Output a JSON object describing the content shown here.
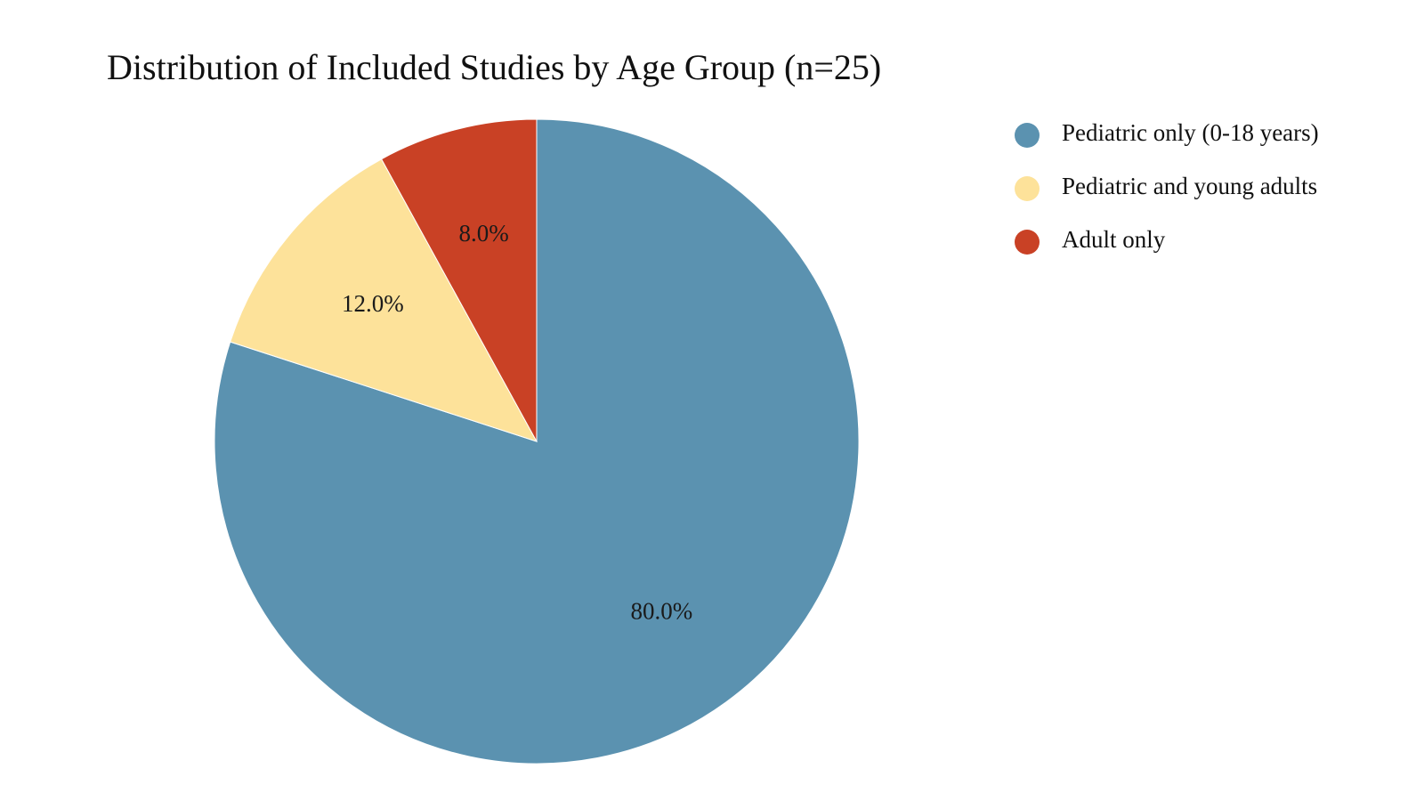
{
  "chart_data": {
    "type": "pie",
    "title": "Distribution of Included Studies by Age Group (n=25)",
    "categories": [
      "Pediatric only (0-18 years)",
      "Pediatric and young adults",
      "Adult only"
    ],
    "values": [
      80.0,
      12.0,
      8.0
    ],
    "labels": [
      "80.0%",
      "12.0%",
      "8.0%"
    ],
    "colors": [
      "#5b92b0",
      "#fde29a",
      "#c94125"
    ],
    "start_angle_deg": 0,
    "direction": "clockwise",
    "legend_position": "top-right"
  }
}
